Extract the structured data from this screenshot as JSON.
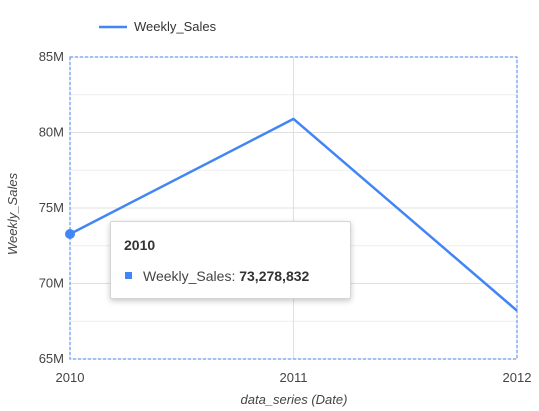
{
  "chart_data": {
    "type": "line",
    "title": "",
    "xlabel": "data_series (Date)",
    "ylabel": "Weekly_Sales",
    "x": [
      "2010",
      "2011",
      "2012"
    ],
    "series": [
      {
        "name": "Weekly_Sales",
        "values": [
          73278832,
          80900000,
          68200000
        ]
      }
    ],
    "ylim": [
      65000000,
      85000000
    ],
    "yticks": [
      {
        "value": 65000000,
        "label": "65M"
      },
      {
        "value": 70000000,
        "label": "70M"
      },
      {
        "value": 75000000,
        "label": "75M"
      },
      {
        "value": 80000000,
        "label": "80M"
      },
      {
        "value": 85000000,
        "label": "85M"
      }
    ],
    "grid": true,
    "legend": "top-left",
    "colors": {
      "series": "#4285f4",
      "grid": "#e0e0e0",
      "selection": "#4285f4"
    }
  },
  "tooltip": {
    "title": "2010",
    "series_label": "Weekly_Sales:",
    "value": "73,278,832"
  }
}
